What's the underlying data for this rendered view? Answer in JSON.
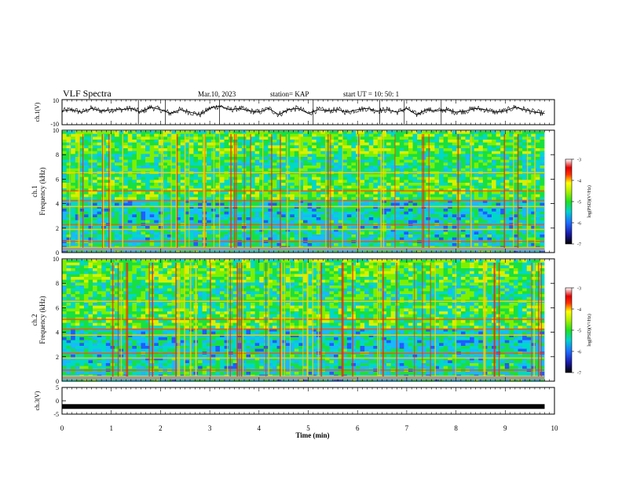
{
  "header": {
    "title": "VLF Spectra",
    "date": "Mar.10, 2023",
    "station": "station= KAP",
    "start": "start  UT =   10: 50: 1"
  },
  "chart_data": [
    {
      "type": "line",
      "ylabel": "ch.1(V)",
      "ylim": [
        -10,
        10
      ],
      "yticks": [
        "10",
        "-10"
      ],
      "x": [
        0,
        0.2,
        0.4,
        0.6,
        0.8,
        1.0,
        1.2,
        1.4,
        1.6,
        1.8,
        2.0,
        2.2,
        2.4,
        2.6,
        2.8,
        3.0,
        3.2,
        3.4,
        3.6,
        3.8,
        4.0,
        4.2,
        4.4,
        4.6,
        4.8,
        5.0,
        5.2,
        5.4,
        5.6,
        5.8,
        6.0,
        6.2,
        6.4,
        6.6,
        6.8,
        7.0,
        7.2,
        7.4,
        7.6,
        7.8,
        8.0,
        8.2,
        8.4,
        8.6,
        8.8,
        9.0,
        9.2,
        9.4,
        9.6,
        9.8
      ],
      "values": [
        1,
        2,
        0,
        3,
        1,
        2,
        2,
        3,
        0,
        4,
        2,
        -1,
        2,
        0,
        -2,
        3,
        5,
        2,
        3,
        1,
        0,
        3,
        -2,
        2,
        3,
        -1,
        2,
        1,
        2,
        0,
        2,
        3,
        1,
        2,
        0,
        3,
        -2,
        2,
        1,
        2,
        0,
        1,
        3,
        2,
        0,
        1,
        4,
        2,
        0,
        -1
      ]
    },
    {
      "type": "heatmap",
      "ylabel": "ch.1\nFrequency (kHz)",
      "ylim": [
        0,
        10
      ],
      "yticks": [
        "0",
        "2",
        "4",
        "6",
        "8",
        "10"
      ],
      "colorbar": {
        "label": "log(PSD)(V²/Hz)",
        "range": [
          -7,
          -3
        ],
        "ticks": [
          "-3",
          "-4",
          "-5",
          "-6",
          "-7"
        ]
      }
    },
    {
      "type": "heatmap",
      "ylabel": "ch.2\nFrequency (kHz)",
      "ylim": [
        0,
        10
      ],
      "yticks": [
        "0",
        "2",
        "4",
        "6",
        "8",
        "10"
      ],
      "colorbar": {
        "label": "log(PSD)(V²/Hz)",
        "range": [
          -7,
          -3
        ],
        "ticks": [
          "-3",
          "-4",
          "-5",
          "-6",
          "-7"
        ]
      }
    },
    {
      "type": "line",
      "ylabel": "ch.3(V)",
      "ylim": [
        -5,
        5
      ],
      "yticks": [
        "5",
        "0",
        "-5"
      ],
      "x": [
        0,
        9.8
      ],
      "values": [
        -2,
        -2
      ]
    }
  ],
  "xaxis": {
    "label": "Time  (min)",
    "ticks": [
      "0",
      "1",
      "2",
      "3",
      "4",
      "5",
      "6",
      "7",
      "8",
      "9",
      "10"
    ]
  }
}
